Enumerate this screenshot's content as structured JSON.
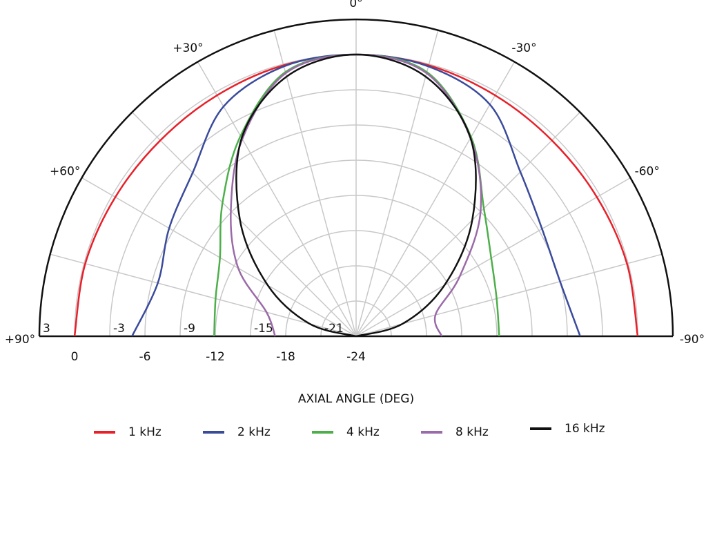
{
  "chart_data": {
    "type": "polar",
    "x_label": "AXIAL ANGLE (DEG)",
    "x": [
      90,
      75,
      60,
      45,
      30,
      15,
      0,
      -15,
      -30,
      -45,
      -60,
      -75,
      -90
    ],
    "thetalim": [
      90,
      -90
    ],
    "thetaticks": [
      {
        "value": 90,
        "label": "+90°"
      },
      {
        "value": 60,
        "label": "+60°"
      },
      {
        "value": 30,
        "label": "+30°"
      },
      {
        "value": 0,
        "label": "0°"
      },
      {
        "value": -30,
        "label": "-30°"
      },
      {
        "value": -60,
        "label": "-60°"
      },
      {
        "value": -90,
        "label": "-90°"
      }
    ],
    "rlim": [
      -24,
      3
    ],
    "rticks_upper": [
      3,
      -3,
      -9,
      -15,
      -21
    ],
    "rticks_lower": [
      0,
      -6,
      -12,
      -18,
      -24
    ],
    "grid": true,
    "series": [
      {
        "name": "1 kHz",
        "color": "#e8202a",
        "values": [
          0,
          -0.1,
          -0.3,
          -0.4,
          -0.3,
          -0.1,
          0,
          -0.1,
          -0.3,
          -0.4,
          -0.3,
          -0.1,
          0
        ]
      },
      {
        "name": "2 kHz",
        "color": "#3a4b9c",
        "values": [
          -4.9,
          -6.5,
          -5.6,
          -4.3,
          -1.4,
          -0.2,
          0,
          -0.2,
          -1.2,
          -4.2,
          -5.7,
          -6,
          -4.9
        ]
      },
      {
        "name": "4 kHz",
        "color": "#4daf4a",
        "values": [
          -11.9,
          -11.6,
          -10.6,
          -7.9,
          -4.3,
          -0.7,
          0,
          -0.7,
          -4.4,
          -8.6,
          -10.7,
          -11.6,
          -11.8
        ]
      },
      {
        "name": "8 kHz",
        "color": "#9b6aa8",
        "values": [
          -17.1,
          -16.1,
          -12.4,
          -8.9,
          -4.6,
          -0.8,
          0,
          -0.8,
          -4.5,
          -9,
          -13.8,
          -17,
          -16.7
        ]
      },
      {
        "name": "16 kHz",
        "color": "#111111",
        "values": [
          -24,
          -19.9,
          -15.3,
          -10,
          -4.5,
          -1.1,
          0,
          -1.1,
          -4.5,
          -10,
          -15.3,
          -19.9,
          -24
        ]
      }
    ]
  }
}
